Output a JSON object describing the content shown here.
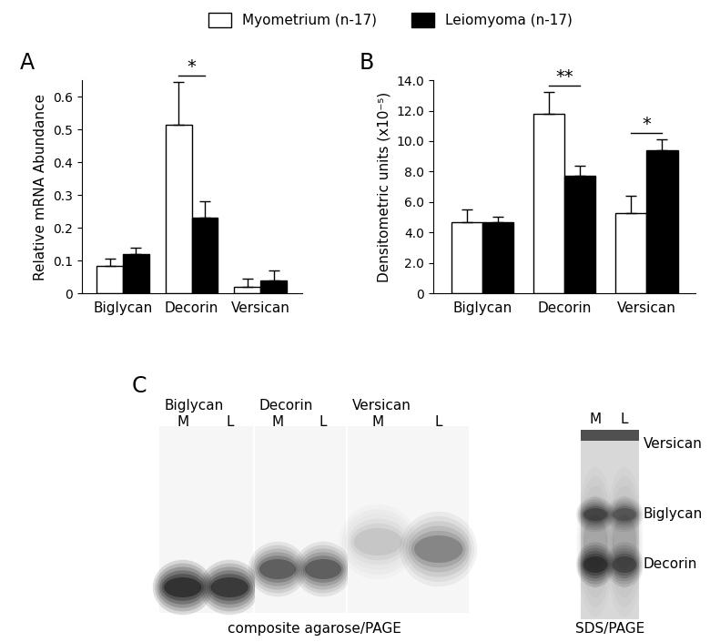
{
  "chart_data": [
    {
      "type": "bar",
      "title": "A",
      "legend": "upper center",
      "categories": [
        "Biglycan",
        "Decorin",
        "Versican"
      ],
      "y_label": "Relative mRNA Abundance",
      "ylim": [
        0,
        0.65
      ],
      "yticks": [
        0,
        0.1,
        0.2,
        0.3,
        0.4,
        0.5,
        0.6
      ],
      "series": [
        {
          "name": "Myometrium (n-17)",
          "color": "#ffffff",
          "values": [
            0.085,
            0.515,
            0.02
          ],
          "errors": [
            0.02,
            0.13,
            0.025
          ]
        },
        {
          "name": "Leiomyoma (n-17)",
          "color": "#000000",
          "values": [
            0.12,
            0.23,
            0.04
          ],
          "errors": [
            0.02,
            0.05,
            0.03
          ]
        }
      ],
      "annotations": [
        {
          "text": "*",
          "category": "Decorin"
        }
      ]
    },
    {
      "type": "bar",
      "title": "B",
      "categories": [
        "Biglycan",
        "Decorin",
        "Versican"
      ],
      "y_label": "Densitometric units (x10⁻⁵)",
      "ylim": [
        0,
        14
      ],
      "yticks": [
        0,
        {
          "value": 2,
          "label": "2.0"
        },
        {
          "value": 4,
          "label": "4.0"
        },
        {
          "value": 6,
          "label": "6.0"
        },
        {
          "value": 8,
          "label": "8.0"
        },
        {
          "value": 10,
          "label": "10.0"
        },
        {
          "value": 12,
          "label": "12.0"
        },
        {
          "value": 14,
          "label": "14.0"
        }
      ],
      "series": [
        {
          "name": "Myometrium (n-17)",
          "color": "#ffffff",
          "values": [
            4.7,
            11.8,
            5.3
          ],
          "errors": [
            0.8,
            1.4,
            1.1
          ]
        },
        {
          "name": "Leiomyoma (n-17)",
          "color": "#000000",
          "values": [
            4.65,
            7.7,
            9.4
          ],
          "errors": [
            0.4,
            0.7,
            0.7
          ]
        }
      ],
      "annotations": [
        {
          "text": "**",
          "category": "Decorin"
        },
        {
          "text": "*",
          "category": "Versican"
        }
      ]
    }
  ],
  "gels": {
    "title": "C",
    "composite": {
      "caption": "composite agarose/PAGE",
      "panels": [
        "Biglycan",
        "Decorin",
        "Versican"
      ],
      "lanes": [
        "M",
        "L"
      ]
    },
    "sds": {
      "caption": "SDS/PAGE",
      "lanes": [
        "M",
        "L"
      ],
      "bands": [
        "Versican",
        "Biglycan",
        "Decorin"
      ]
    }
  }
}
